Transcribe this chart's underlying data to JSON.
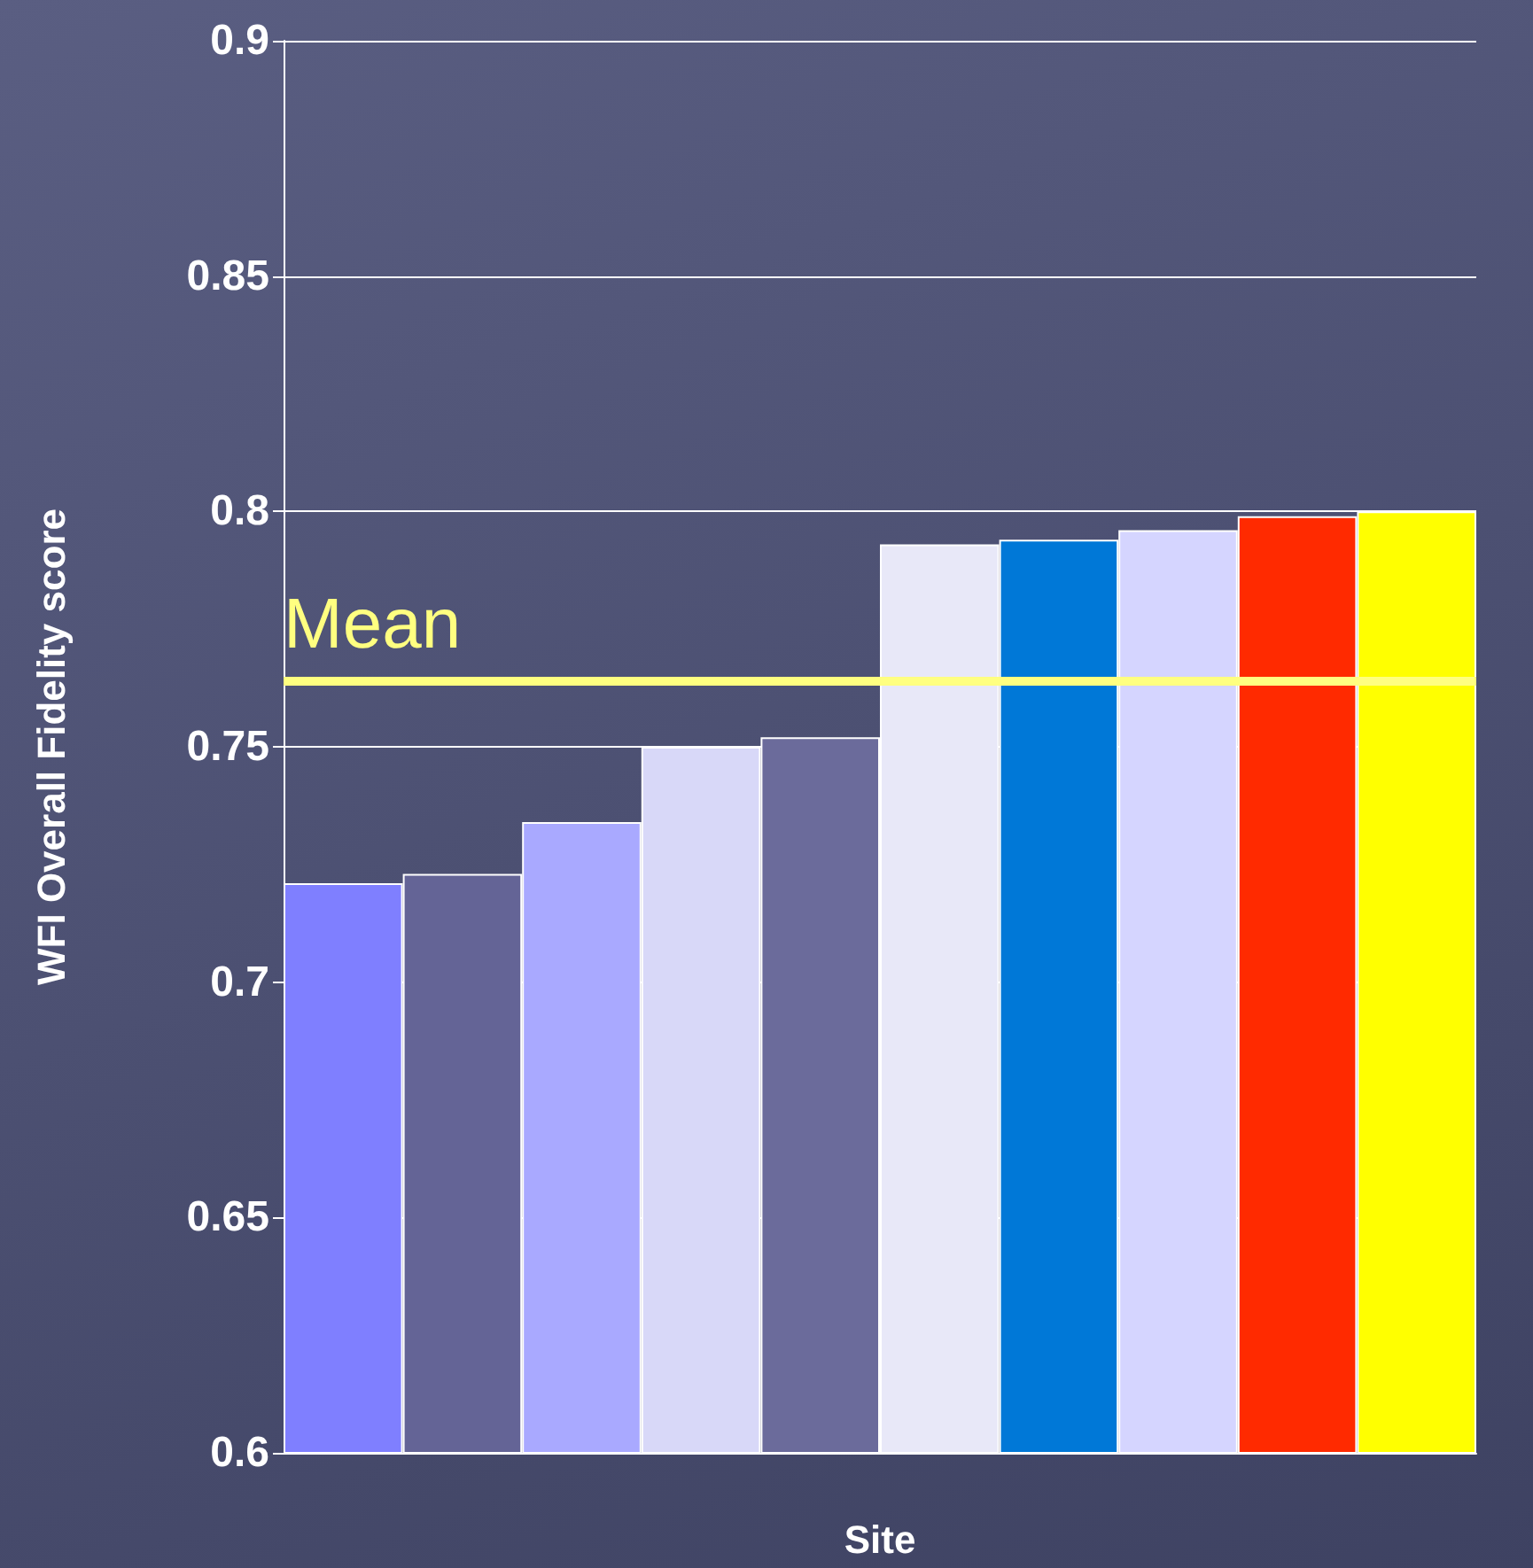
{
  "chart_data": {
    "type": "bar",
    "xlabel": "Site",
    "ylabel": "WFI Overall Fidelity score",
    "categories": [
      null,
      null,
      null,
      null,
      null,
      null,
      null,
      null,
      null,
      null
    ],
    "values": [
      0.721,
      0.723,
      0.734,
      0.75,
      0.752,
      0.793,
      0.794,
      0.796,
      0.799,
      0.8
    ],
    "colors": [
      "#7f7fff",
      "#646496",
      "#a9a9ff",
      "#d8d8f8",
      "#6b6b9b",
      "#e8e8f8",
      "#0078d7",
      "#d5d5ff",
      "#ff2a00",
      "#ffff00"
    ],
    "ylim": [
      0.6,
      0.9
    ],
    "yticks": [
      0.6,
      0.65,
      0.7,
      0.75,
      0.8,
      0.85,
      0.9
    ],
    "grid": "y",
    "ref_lines": [
      {
        "axis": "y",
        "value": 0.764,
        "label": "Mean",
        "color": "#ffff80",
        "line_style": "solid"
      }
    ]
  }
}
